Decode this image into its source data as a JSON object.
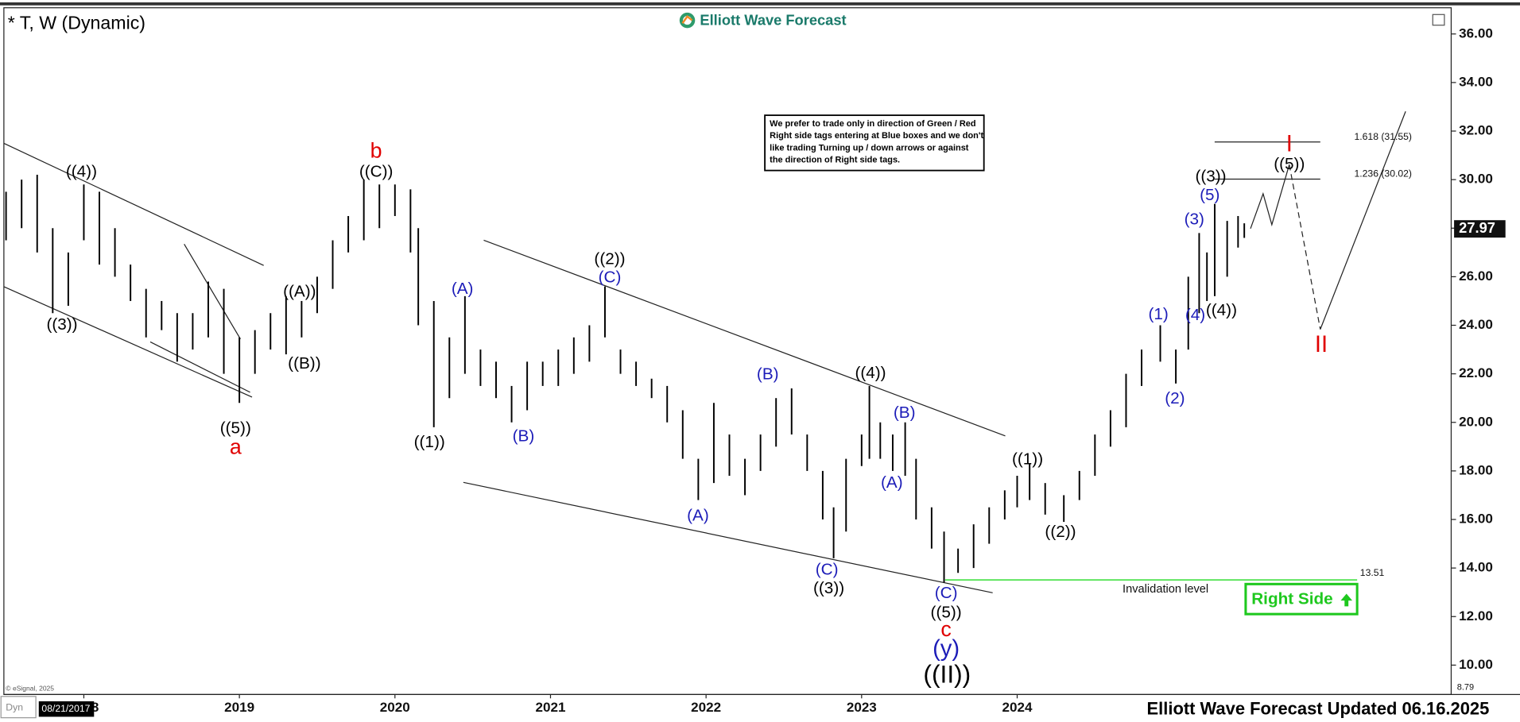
{
  "chart_data": {
    "type": "ohlc",
    "title": "* T, W (Dynamic)",
    "source": "Elliott Wave Forecast",
    "footer": "Elliott Wave Forecast Updated 06.16.2025",
    "copyright": "© eSignal, 2025",
    "dyn": "Dyn",
    "date_box": "08/21/2017",
    "color": "#000000",
    "xlim": [
      2017.486,
      2026.79
    ],
    "ylim": [
      8.79,
      37.08
    ],
    "xticks": [
      2018,
      2019,
      2020,
      2021,
      2022,
      2023,
      2024
    ],
    "yticks": [
      {
        "value": 10,
        "label": "10.00"
      },
      {
        "value": 12,
        "label": "12.00"
      },
      {
        "value": 14,
        "label": "14.00"
      },
      {
        "value": 16,
        "label": "16.00"
      },
      {
        "value": 18,
        "label": "18.00"
      },
      {
        "value": 20,
        "label": "20.00"
      },
      {
        "value": 22,
        "label": "22.00"
      },
      {
        "value": 24,
        "label": "24.00"
      },
      {
        "value": 26,
        "label": "26.00"
      },
      {
        "value": 28,
        "label": "28.00"
      },
      {
        "value": 30,
        "label": "30.00"
      },
      {
        "value": 32,
        "label": "32.00"
      },
      {
        "value": 34,
        "label": "34.00"
      },
      {
        "value": 36,
        "label": "36.00"
      }
    ],
    "x": [
      2017.5,
      2017.6,
      2017.7,
      2017.8,
      2017.9,
      2018.0,
      2018.1,
      2018.2,
      2018.3,
      2018.4,
      2018.5,
      2018.6,
      2018.7,
      2018.8,
      2018.9,
      2019.0,
      2019.1,
      2019.2,
      2019.3,
      2019.4,
      2019.5,
      2019.6,
      2019.7,
      2019.8,
      2019.9,
      2020.0,
      2020.1,
      2020.15,
      2020.25,
      2020.35,
      2020.45,
      2020.55,
      2020.65,
      2020.75,
      2020.85,
      2020.95,
      2021.05,
      2021.15,
      2021.25,
      2021.35,
      2021.45,
      2021.55,
      2021.65,
      2021.75,
      2021.85,
      2021.95,
      2022.05,
      2022.15,
      2022.25,
      2022.35,
      2022.45,
      2022.55,
      2022.65,
      2022.75,
      2022.82,
      2022.9,
      2023.0,
      2023.05,
      2023.12,
      2023.2,
      2023.28,
      2023.35,
      2023.45,
      2023.53,
      2023.62,
      2023.72,
      2023.82,
      2023.92,
      2024.0,
      2024.08,
      2024.18,
      2024.3,
      2024.4,
      2024.5,
      2024.6,
      2024.7,
      2024.8,
      2024.92,
      2025.02,
      2025.1,
      2025.17,
      2025.22,
      2025.27,
      2025.35,
      2025.42,
      2025.46
    ],
    "high": [
      29.5,
      30,
      30.2,
      28,
      27,
      29.8,
      29.5,
      28,
      26.5,
      25.5,
      25,
      24.5,
      24.5,
      25.8,
      25.5,
      23.5,
      23.8,
      24.5,
      25.2,
      25,
      26,
      27.5,
      28.5,
      30,
      29.8,
      29.8,
      29.6,
      28,
      25,
      23.5,
      25.2,
      23,
      22.5,
      21.5,
      22.5,
      22.5,
      23,
      23.5,
      24,
      25.6,
      23,
      22.5,
      21.8,
      21.5,
      20.5,
      18.5,
      20.8,
      19.5,
      18.5,
      19.5,
      21,
      21.4,
      19.5,
      18,
      16.5,
      18.5,
      19.5,
      21.5,
      20,
      19.5,
      20,
      18.5,
      16.5,
      15.5,
      14.8,
      15.8,
      16.5,
      17.2,
      17.8,
      18.3,
      17.5,
      17,
      18,
      19.5,
      20.5,
      22,
      23,
      24,
      23,
      26,
      27.8,
      27,
      29,
      28.3,
      28.5,
      28.2
    ],
    "low": [
      27.5,
      28,
      27,
      24.5,
      24.8,
      27.5,
      26.5,
      26,
      25,
      23.5,
      23.8,
      22.5,
      23,
      23.5,
      22,
      20.8,
      22,
      23,
      22.8,
      23.5,
      24.5,
      25.5,
      27,
      27.5,
      28,
      28.5,
      27,
      24,
      19.8,
      21,
      22,
      21.5,
      21,
      20,
      20.5,
      21.5,
      21.5,
      22,
      22.5,
      23.5,
      22,
      21.5,
      21,
      20,
      18.5,
      16.8,
      17.5,
      17.8,
      17,
      18,
      19,
      19.5,
      18,
      16,
      14.4,
      15.5,
      18.2,
      18.5,
      18.5,
      18,
      17.8,
      16,
      14.8,
      13.4,
      13.8,
      14,
      15,
      16,
      16.5,
      16.8,
      16.2,
      15.9,
      16.8,
      17.8,
      19,
      19.8,
      21.5,
      22.5,
      21.6,
      23,
      24.5,
      25,
      25.2,
      26,
      27.2,
      27.6
    ],
    "last_price": 27.97,
    "fib_levels": [
      {
        "value": 31.55,
        "label": "1.618 (31.55)"
      },
      {
        "value": 30.02,
        "label": "1.236 (30.02)"
      }
    ],
    "invalidation": 13.51,
    "invalidation_label": "Invalidation level",
    "right_side": "Right Side",
    "note": [
      "We prefer to trade only in direction of Green / Red",
      "Right side tags entering at Blue boxes and we don't",
      "like trading Turning up / down arrows or against",
      "the direction of Right side tags."
    ],
    "wave_labels": [
      {
        "text": "((4))",
        "color": "#000000"
      },
      {
        "text": "((3))",
        "color": "#000000"
      },
      {
        "text": "((5))",
        "color": "#000000"
      },
      {
        "text": "a",
        "color": "#e00000"
      },
      {
        "text": "((A))",
        "color": "#000000"
      },
      {
        "text": "((B))",
        "color": "#000000"
      },
      {
        "text": "b",
        "color": "#e00000"
      },
      {
        "text": "((C))",
        "color": "#000000"
      },
      {
        "text": "((1))",
        "color": "#000000"
      },
      {
        "text": "(A)",
        "color": "#1c1cb8"
      },
      {
        "text": "(B)",
        "color": "#1c1cb8"
      },
      {
        "text": "((2))",
        "color": "#000000"
      },
      {
        "text": "(C)",
        "color": "#1c1cb8"
      },
      {
        "text": "(A)",
        "color": "#1c1cb8"
      },
      {
        "text": "(B)",
        "color": "#1c1cb8"
      },
      {
        "text": "(C)",
        "color": "#1c1cb8"
      },
      {
        "text": "((3))",
        "color": "#000000"
      },
      {
        "text": "((4))",
        "color": "#000000"
      },
      {
        "text": "(B)",
        "color": "#1c1cb8"
      },
      {
        "text": "(A)",
        "color": "#1c1cb8"
      },
      {
        "text": "(C)",
        "color": "#1c1cb8"
      },
      {
        "text": "((5))",
        "color": "#000000"
      },
      {
        "text": "c",
        "color": "#e00000"
      },
      {
        "text": "(y)",
        "color": "#1c1cb8"
      },
      {
        "text": "((II))",
        "color": "#000000"
      },
      {
        "text": "((1))",
        "color": "#000000"
      },
      {
        "text": "((2))",
        "color": "#000000"
      },
      {
        "text": "(1)",
        "color": "#1c1cb8"
      },
      {
        "text": "(2)",
        "color": "#1c1cb8"
      },
      {
        "text": "(3)",
        "color": "#1c1cb8"
      },
      {
        "text": "(4)",
        "color": "#1c1cb8"
      },
      {
        "text": "((4))",
        "color": "#000000"
      },
      {
        "text": "(5)",
        "color": "#1c1cb8"
      },
      {
        "text": "((3))",
        "color": "#000000"
      },
      {
        "text": "((5))",
        "color": "#000000"
      },
      {
        "text": "I",
        "color": "#e00000"
      },
      {
        "text": "II",
        "color": "#e00000"
      }
    ]
  }
}
